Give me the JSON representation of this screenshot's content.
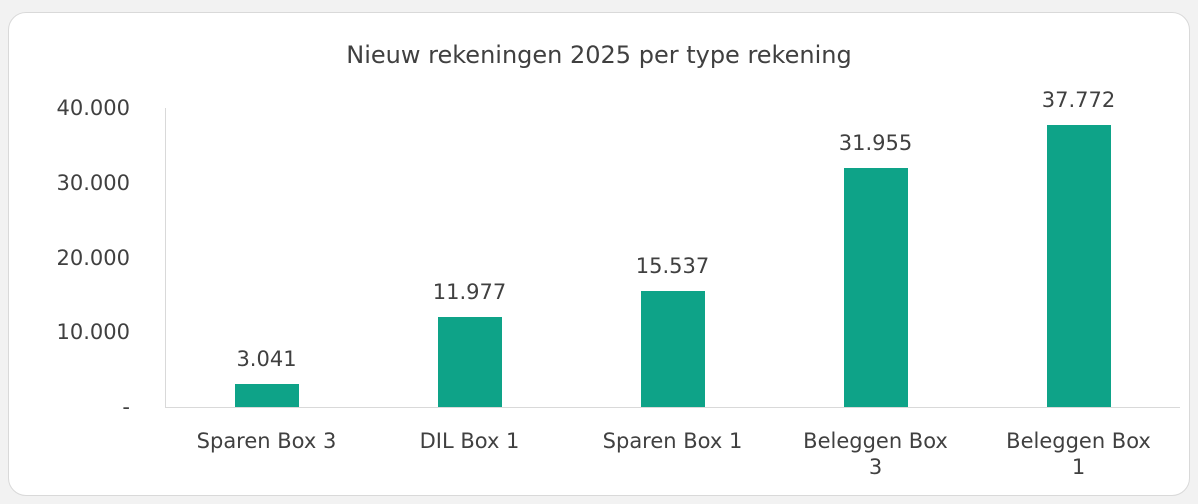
{
  "chart_data": {
    "type": "bar",
    "title": "Nieuw rekeningen 2025 per type rekening",
    "categories": [
      "Sparen Box 3",
      "DIL Box 1",
      "Sparen Box 1",
      "Beleggen Box 3",
      "Beleggen Box 1"
    ],
    "values": [
      3041,
      11977,
      15537,
      31955,
      37772
    ],
    "value_labels": [
      "3.041",
      "11.977",
      "15.537",
      "31.955",
      "37.772"
    ],
    "color": "#0ea388",
    "ylim": [
      0,
      40000
    ],
    "yticks": [
      {
        "value": 0,
        "label": "-"
      },
      {
        "value": 10000,
        "label": "10.000"
      },
      {
        "value": 20000,
        "label": "20.000"
      },
      {
        "value": 30000,
        "label": "30.000"
      },
      {
        "value": 40000,
        "label": "40.000"
      }
    ],
    "grid": false
  }
}
